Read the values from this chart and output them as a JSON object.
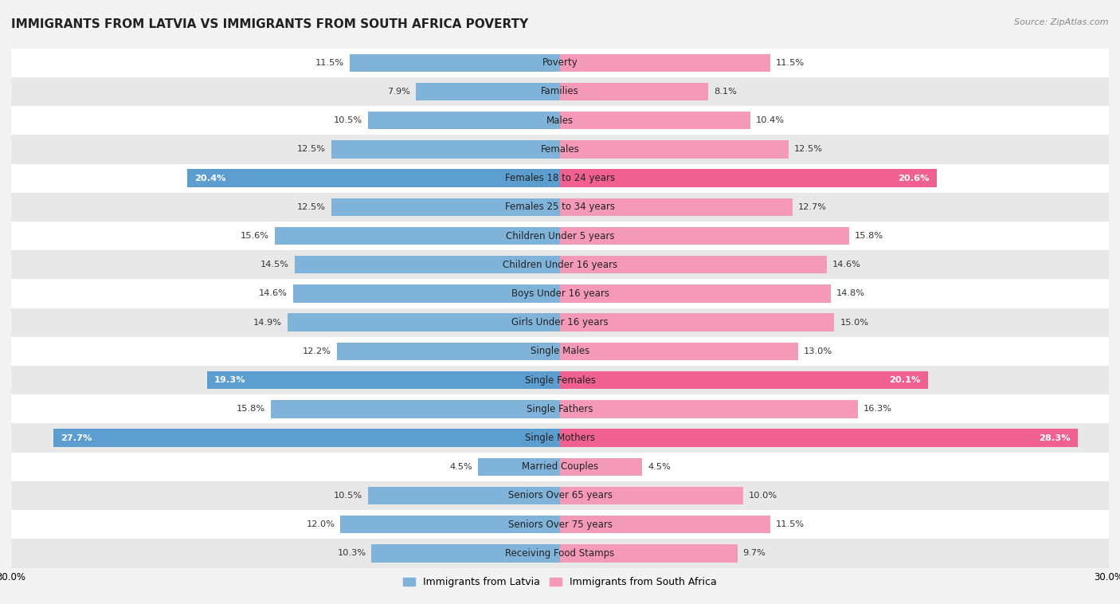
{
  "title": "IMMIGRANTS FROM LATVIA VS IMMIGRANTS FROM SOUTH AFRICA POVERTY",
  "source": "Source: ZipAtlas.com",
  "categories": [
    "Poverty",
    "Families",
    "Males",
    "Females",
    "Females 18 to 24 years",
    "Females 25 to 34 years",
    "Children Under 5 years",
    "Children Under 16 years",
    "Boys Under 16 years",
    "Girls Under 16 years",
    "Single Males",
    "Single Females",
    "Single Fathers",
    "Single Mothers",
    "Married Couples",
    "Seniors Over 65 years",
    "Seniors Over 75 years",
    "Receiving Food Stamps"
  ],
  "latvia_values": [
    11.5,
    7.9,
    10.5,
    12.5,
    20.4,
    12.5,
    15.6,
    14.5,
    14.6,
    14.9,
    12.2,
    19.3,
    15.8,
    27.7,
    4.5,
    10.5,
    12.0,
    10.3
  ],
  "south_africa_values": [
    11.5,
    8.1,
    10.4,
    12.5,
    20.6,
    12.7,
    15.8,
    14.6,
    14.8,
    15.0,
    13.0,
    20.1,
    16.3,
    28.3,
    4.5,
    10.0,
    11.5,
    9.7
  ],
  "latvia_color": "#7fb3d9",
  "south_africa_color": "#f599b8",
  "latvia_highlight_color": "#5b9ecf",
  "south_africa_highlight_color": "#f06090",
  "highlight_rows": [
    4,
    11,
    13
  ],
  "bg_color": "#f2f2f2",
  "row_even_color": "#ffffff",
  "row_odd_color": "#e8e8e8",
  "bar_height": 0.62,
  "max_val": 30.0,
  "legend_latvia": "Immigrants from Latvia",
  "legend_south_africa": "Immigrants from South Africa",
  "title_fontsize": 11,
  "label_fontsize": 8.5,
  "value_fontsize": 8.2,
  "axis_fontsize": 8.5
}
